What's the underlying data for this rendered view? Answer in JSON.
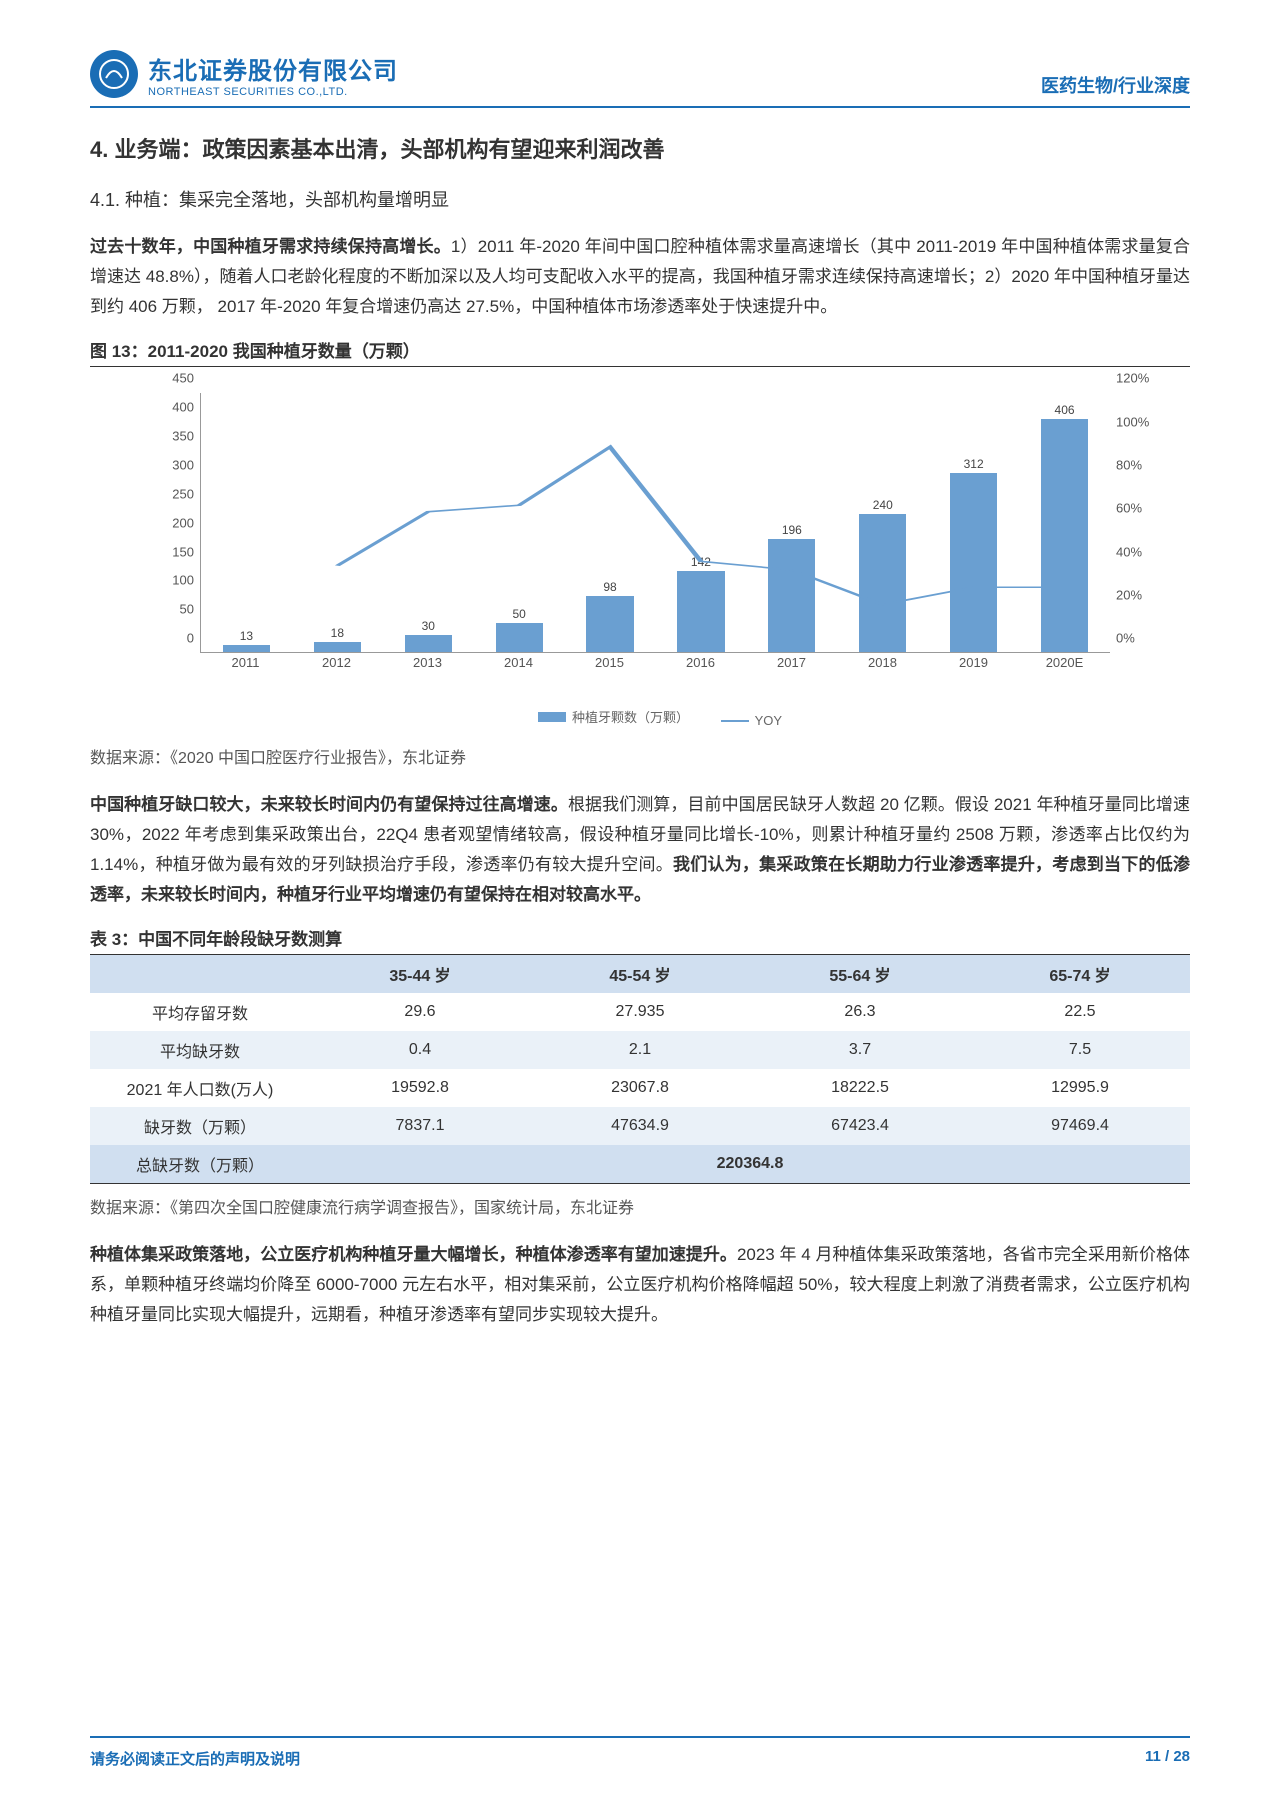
{
  "header": {
    "company_cn": "东北证券股份有限公司",
    "company_en": "NORTHEAST SECURITIES CO.,LTD.",
    "right": "医药生物/行业深度"
  },
  "section": {
    "num": "4.",
    "title": "业务端：政策因素基本出清，头部机构有望迎来利润改善"
  },
  "subsection": {
    "num": "4.1.",
    "title": "种植：集采完全落地，头部机构量增明显"
  },
  "para1_lead": "过去十数年，中国种植牙需求持续保持高增长。",
  "para1_body": "1）2011 年-2020 年间中国口腔种植体需求量高速增长（其中 2011-2019 年中国种植体需求量复合增速达 48.8%），随着人口老龄化程度的不断加深以及人均可支配收入水平的提高，我国种植牙需求连续保持高速增长；2）2020 年中国种植牙量达到约 406 万颗， 2017 年-2020 年复合增速仍高达 27.5%，中国种植体市场渗透率处于快速提升中。",
  "fig13_title": "图 13：2011-2020 我国种植牙数量（万颗）",
  "chart": {
    "type": "bar+line",
    "categories": [
      "2011",
      "2012",
      "2013",
      "2014",
      "2015",
      "2016",
      "2017",
      "2018",
      "2019",
      "2020E"
    ],
    "bar_values": [
      13,
      18,
      30,
      50,
      98,
      142,
      196,
      240,
      312,
      406
    ],
    "line_values_pct": [
      null,
      40,
      65,
      68,
      95,
      42,
      38,
      22,
      30,
      30
    ],
    "y_left": {
      "min": 0,
      "max": 450,
      "step": 50
    },
    "y_right": {
      "min": 0,
      "max": 120,
      "step": 20,
      "suffix": "%"
    },
    "bar_color": "#6a9fd1",
    "line_color": "#6a9fd1",
    "legend_bar": "种植牙颗数（万颗）",
    "legend_line": "YOY"
  },
  "fig13_source": "数据来源：《2020 中国口腔医疗行业报告》，东北证券",
  "para2_lead": "中国种植牙缺口较大，未来较长时间内仍有望保持过往高增速。",
  "para2_body": "根据我们测算，目前中国居民缺牙人数超 20 亿颗。假设 2021 年种植牙量同比增速 30%，2022 年考虑到集采政策出台，22Q4 患者观望情绪较高，假设种植牙量同比增长-10%，则累计种植牙量约 2508 万颗，渗透率占比仅约为 1.14%，种植牙做为最有效的牙列缺损治疗手段，渗透率仍有较大提升空间。",
  "para2_bold_tail": "我们认为，集采政策在长期助力行业渗透率提升，考虑到当下的低渗透率，未来较长时间内，种植牙行业平均增速仍有望保持在相对较高水平。",
  "table3_title": "表 3：中国不同年龄段缺牙数测算",
  "table": {
    "columns": [
      "",
      "35-44 岁",
      "45-54 岁",
      "55-64 岁",
      "65-74 岁"
    ],
    "rows": [
      [
        "平均存留牙数",
        "29.6",
        "27.935",
        "26.3",
        "22.5"
      ],
      [
        "平均缺牙数",
        "0.4",
        "2.1",
        "3.7",
        "7.5"
      ],
      [
        "2021 年人口数(万人)",
        "19592.8",
        "23067.8",
        "18222.5",
        "12995.9"
      ],
      [
        "缺牙数（万颗）",
        "7837.1",
        "47634.9",
        "67423.4",
        "97469.4"
      ]
    ],
    "total_label": "总缺牙数（万颗）",
    "total_value": "220364.8"
  },
  "table3_source": "数据来源：《第四次全国口腔健康流行病学调查报告》，国家统计局，东北证券",
  "para3": "种植体集采政策落地，公立医疗机构种植牙量大幅增长，种植体渗透率有望加速提升。",
  "para3_body": "2023 年 4 月种植体集采政策落地，各省市完全采用新价格体系，单颗种植牙终端均价降至 6000-7000 元左右水平，相对集采前，公立医疗机构价格降幅超 50%，较大程度上刺激了消费者需求，公立医疗机构种植牙量同比实现大幅提升，远期看，种植牙渗透率有望同步实现较大提升。",
  "footer": {
    "left": "请务必阅读正文后的声明及说明",
    "right": "11  /  28"
  }
}
